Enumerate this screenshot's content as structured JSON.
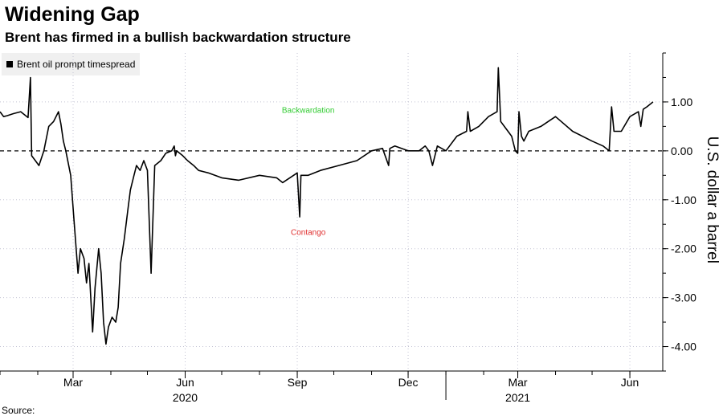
{
  "title": "Widening Gap",
  "subtitle": "Brent has firmed in a bullish backwardation structure",
  "chart_data": {
    "type": "line",
    "title": "Widening Gap",
    "subtitle": "Brent has firmed in a bullish backwardation structure",
    "ylabel": "U.S. dollar a barrel",
    "ylim": [
      -4.5,
      2.0
    ],
    "y_ticks": [
      1.0,
      0.0,
      -1.0,
      -2.0,
      -3.0,
      -4.0
    ],
    "y_tick_labels": [
      "1.00",
      "0.00",
      "-1.00",
      "-2.00",
      "-3.00",
      "-4.00"
    ],
    "x_ticks": [
      "2020-03-01",
      "2020-06-01",
      "2020-09-01",
      "2020-12-01",
      "2021-03-01",
      "2021-06-01"
    ],
    "x_tick_labels": [
      "Mar",
      "Jun",
      "Sep",
      "Dec",
      "Mar",
      "Jun"
    ],
    "x_year_labels": [
      {
        "label": "2020",
        "date": "2020-06-01"
      },
      {
        "label": "2021",
        "date": "2021-03-01"
      }
    ],
    "grid": true,
    "legend_position": "top-left",
    "annotations": [
      {
        "text": "Backwardation",
        "color": "#33cc33",
        "date": "2020-09-10",
        "y": 0.78
      },
      {
        "text": "Contango",
        "color": "#e03030",
        "date": "2020-09-10",
        "y": -1.72
      }
    ],
    "series": [
      {
        "name": "Brent oil prompt timespread",
        "color": "#000000",
        "x": [
          "2020-01-01",
          "2020-01-04",
          "2020-01-07",
          "2020-01-12",
          "2020-01-18",
          "2020-01-24",
          "2020-01-26",
          "2020-01-27",
          "2020-01-30",
          "2020-02-02",
          "2020-02-06",
          "2020-02-10",
          "2020-02-14",
          "2020-02-18",
          "2020-02-20",
          "2020-02-22",
          "2020-02-24",
          "2020-02-28",
          "2020-03-02",
          "2020-03-05",
          "2020-03-07",
          "2020-03-10",
          "2020-03-12",
          "2020-03-14",
          "2020-03-17",
          "2020-03-19",
          "2020-03-22",
          "2020-03-24",
          "2020-03-26",
          "2020-03-28",
          "2020-03-30",
          "2020-04-02",
          "2020-04-05",
          "2020-04-07",
          "2020-04-09",
          "2020-04-12",
          "2020-04-15",
          "2020-04-17",
          "2020-04-20",
          "2020-04-22",
          "2020-04-25",
          "2020-04-28",
          "2020-05-01",
          "2020-05-04",
          "2020-05-07",
          "2020-05-12",
          "2020-05-16",
          "2020-05-21",
          "2020-05-23",
          "2020-05-24",
          "2020-05-25",
          "2020-05-30",
          "2020-06-03",
          "2020-06-08",
          "2020-06-12",
          "2020-06-20",
          "2020-07-01",
          "2020-07-15",
          "2020-08-01",
          "2020-08-15",
          "2020-08-20",
          "2020-09-01",
          "2020-09-03",
          "2020-09-04",
          "2020-09-10",
          "2020-09-20",
          "2020-10-05",
          "2020-10-20",
          "2020-11-01",
          "2020-11-10",
          "2020-11-15",
          "2020-11-16",
          "2020-11-20",
          "2020-12-01",
          "2020-12-10",
          "2020-12-15",
          "2020-12-18",
          "2020-12-21",
          "2020-12-25",
          "2021-01-01",
          "2021-01-10",
          "2021-01-18",
          "2021-01-19",
          "2021-01-21",
          "2021-01-28",
          "2021-02-05",
          "2021-02-12",
          "2021-02-13",
          "2021-02-15",
          "2021-02-18",
          "2021-02-24",
          "2021-02-27",
          "2021-03-01",
          "2021-03-02",
          "2021-03-04",
          "2021-03-06",
          "2021-03-10",
          "2021-03-20",
          "2021-04-01",
          "2021-04-15",
          "2021-05-01",
          "2021-05-10",
          "2021-05-15",
          "2021-05-17",
          "2021-05-19",
          "2021-05-25",
          "2021-06-01",
          "2021-06-08",
          "2021-06-10",
          "2021-06-12",
          "2021-06-15",
          "2021-06-20"
        ],
        "y": [
          0.8,
          0.7,
          0.72,
          0.76,
          0.8,
          0.68,
          1.5,
          -0.1,
          -0.2,
          -0.3,
          0.0,
          0.5,
          0.6,
          0.8,
          0.55,
          0.2,
          0.0,
          -0.5,
          -1.5,
          -2.5,
          -2.0,
          -2.2,
          -2.7,
          -2.3,
          -3.7,
          -2.8,
          -2.0,
          -2.5,
          -3.5,
          -3.95,
          -3.6,
          -3.4,
          -3.5,
          -3.2,
          -2.3,
          -1.8,
          -1.2,
          -0.8,
          -0.5,
          -0.3,
          -0.4,
          -0.2,
          -0.4,
          -2.5,
          -0.3,
          -0.2,
          -0.05,
          0.0,
          0.1,
          -0.1,
          0.0,
          -0.1,
          -0.2,
          -0.3,
          -0.4,
          -0.45,
          -0.55,
          -0.6,
          -0.5,
          -0.55,
          -0.65,
          -0.45,
          -1.35,
          -0.5,
          -0.5,
          -0.4,
          -0.3,
          -0.2,
          0.0,
          0.05,
          -0.3,
          0.05,
          0.1,
          0.0,
          0.0,
          0.1,
          0.0,
          -0.3,
          0.1,
          0.0,
          0.3,
          0.4,
          0.8,
          0.4,
          0.5,
          0.7,
          0.8,
          1.7,
          0.6,
          0.5,
          0.3,
          0.0,
          -0.05,
          0.8,
          0.3,
          0.2,
          0.4,
          0.5,
          0.7,
          0.4,
          0.2,
          0.1,
          0.0,
          0.9,
          0.4,
          0.4,
          0.7,
          0.8,
          0.5,
          0.85,
          0.9,
          1.0
        ]
      }
    ]
  },
  "source_label": "Source: "
}
